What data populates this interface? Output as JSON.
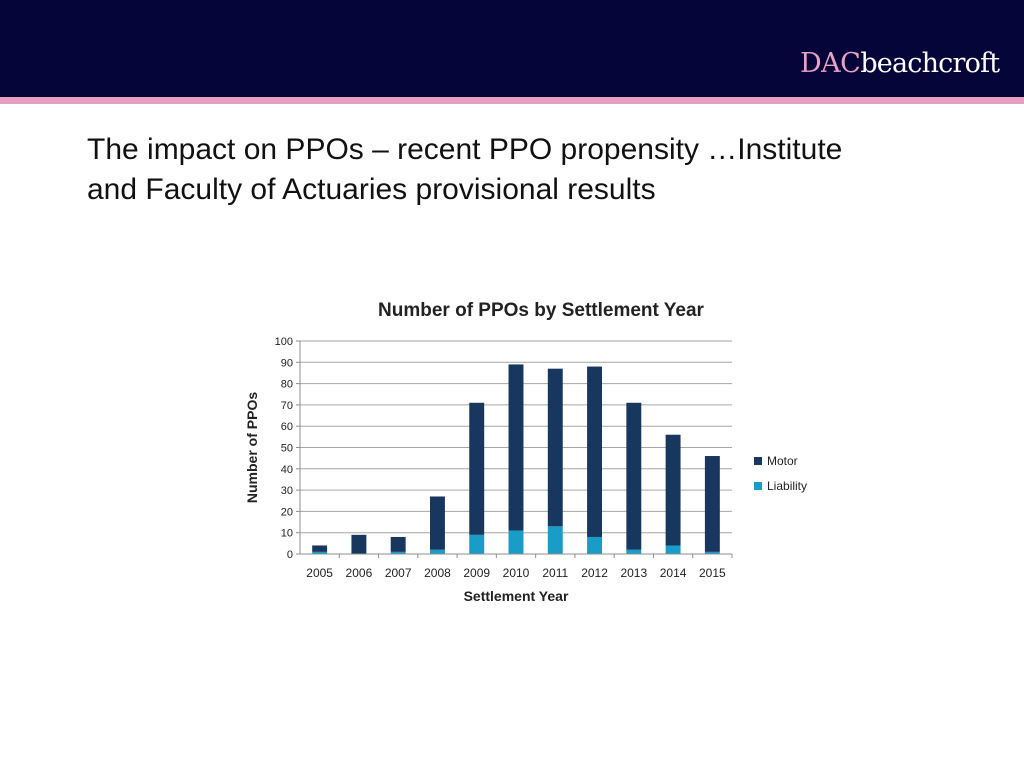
{
  "header": {
    "logo_part1": "DAC",
    "logo_part2": "beachcroft",
    "band_color": "#06053a",
    "stripe_color": "#e79fc0",
    "logo_accent_color": "#e6a3c4"
  },
  "slide": {
    "title_line1": "The impact on PPOs – recent PPO propensity …Institute",
    "title_line2": "and Faculty of Actuaries provisional results"
  },
  "chart_data": {
    "type": "bar",
    "stacked": true,
    "title": "Number of PPOs by Settlement Year",
    "xlabel": "Settlement Year",
    "ylabel": "Number of PPOs",
    "ylim": [
      0,
      100
    ],
    "yticks": [
      0,
      10,
      20,
      30,
      40,
      50,
      60,
      70,
      80,
      90,
      100
    ],
    "grid": true,
    "legend_position": "right",
    "categories": [
      "2005",
      "2006",
      "2007",
      "2008",
      "2009",
      "2010",
      "2011",
      "2012",
      "2013",
      "2014",
      "2015"
    ],
    "series": [
      {
        "name": "Liability",
        "color": "#1a9cc9",
        "values": [
          1,
          0,
          1,
          2,
          9,
          11,
          13,
          8,
          2,
          4,
          1
        ]
      },
      {
        "name": "Motor",
        "color": "#17375e",
        "values": [
          3,
          9,
          7,
          25,
          62,
          78,
          74,
          80,
          69,
          52,
          45
        ]
      }
    ],
    "legend_order": [
      "Motor",
      "Liability"
    ]
  }
}
